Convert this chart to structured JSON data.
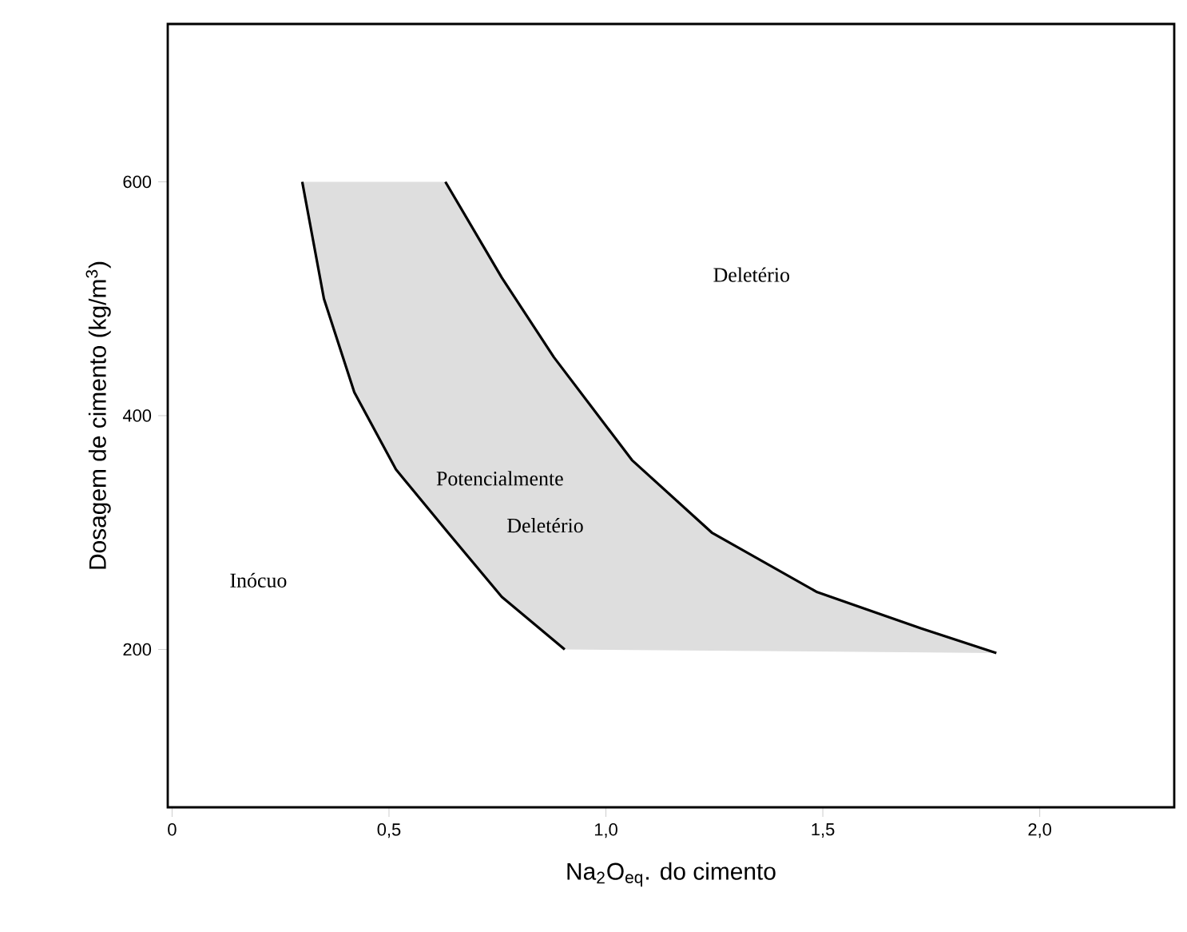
{
  "chart_data": {
    "type": "line",
    "xlabel": "Na$_{2}$O$_{eq}$. do cimento",
    "ylabel": "Dosagem de cimento (kg/m$^{3}$)",
    "xlim": [
      -0.01,
      2.31
    ],
    "ylim": [
      65,
      735
    ],
    "xticks": [
      0,
      {
        "value": 0.5,
        "label": "0,5"
      },
      {
        "value": 1.0,
        "label": "1,0"
      },
      {
        "value": 1.5,
        "label": "1,5"
      },
      {
        "value": 2.0,
        "label": "2,0"
      }
    ],
    "yticks": [
      200,
      400,
      600
    ],
    "series": [
      {
        "color": "#000000",
        "x": [
          0.3,
          0.35,
          0.42,
          0.516,
          0.636,
          0.76,
          0.905
        ],
        "values": [
          600,
          500,
          420,
          354,
          300,
          245,
          200
        ]
      },
      {
        "color": "#000000",
        "x": [
          0.63,
          0.76,
          0.88,
          1.06,
          1.244,
          1.487,
          1.727,
          1.9
        ],
        "values": [
          600,
          518,
          450,
          362,
          300,
          249,
          218,
          197
        ]
      }
    ],
    "annotations": [
      "Deletério",
      "Potencialmente",
      "Deletério",
      "Inócuo"
    ],
    "marker": "none",
    "line_style": "solid"
  }
}
